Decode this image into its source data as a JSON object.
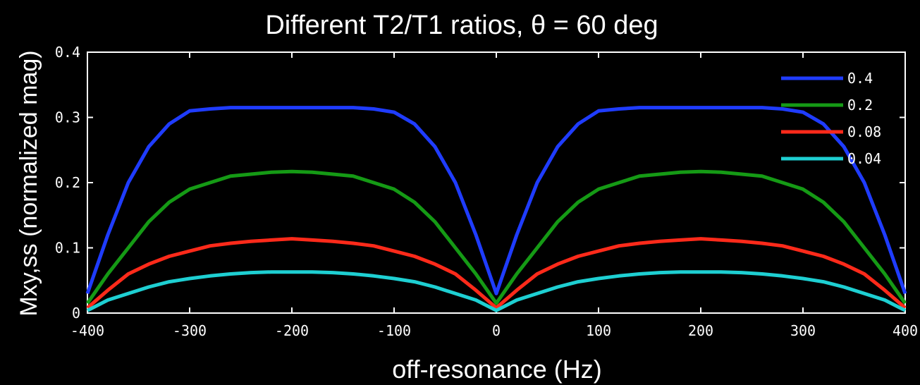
{
  "chart_data": {
    "type": "line",
    "title": "Different T2/T1 ratios, θ = 60 deg",
    "xlabel": "off-resonance (Hz)",
    "ylabel": "Mxy,ss (normalized mag)",
    "xlim": [
      -400,
      400
    ],
    "ylim": [
      0,
      0.4
    ],
    "xticks": [
      -400,
      -300,
      -200,
      -100,
      0,
      100,
      200,
      300,
      400
    ],
    "xtick_labels": [
      "-400",
      "-300",
      "-200",
      "-100",
      "0",
      "100",
      "200",
      "300",
      "400"
    ],
    "yticks": [
      0,
      0.1,
      0.2,
      0.3,
      0.4
    ],
    "ytick_labels": [
      "0",
      "0.1",
      "0.2",
      "0.3",
      "0.4"
    ],
    "grid": false,
    "legend_position": "top-right",
    "x": [
      -400,
      -380,
      -360,
      -340,
      -320,
      -300,
      -280,
      -260,
      -240,
      -220,
      -200,
      -180,
      -160,
      -140,
      -120,
      -100,
      -80,
      -60,
      -40,
      -20,
      0,
      20,
      40,
      60,
      80,
      100,
      120,
      140,
      160,
      180,
      200,
      220,
      240,
      260,
      280,
      300,
      320,
      340,
      360,
      380,
      400
    ],
    "series": [
      {
        "name": "0.4",
        "color": "#1f3cff",
        "values": [
          0.03,
          0.12,
          0.2,
          0.255,
          0.29,
          0.31,
          0.313,
          0.315,
          0.315,
          0.315,
          0.315,
          0.315,
          0.315,
          0.315,
          0.313,
          0.308,
          0.29,
          0.255,
          0.2,
          0.12,
          0.03,
          0.12,
          0.2,
          0.255,
          0.29,
          0.31,
          0.313,
          0.315,
          0.315,
          0.315,
          0.315,
          0.315,
          0.315,
          0.315,
          0.313,
          0.308,
          0.29,
          0.255,
          0.2,
          0.12,
          0.03
        ]
      },
      {
        "name": "0.2",
        "color": "#159a15",
        "values": [
          0.015,
          0.06,
          0.1,
          0.14,
          0.17,
          0.19,
          0.2,
          0.21,
          0.213,
          0.216,
          0.217,
          0.216,
          0.213,
          0.21,
          0.2,
          0.19,
          0.17,
          0.14,
          0.1,
          0.06,
          0.015,
          0.06,
          0.1,
          0.14,
          0.17,
          0.19,
          0.2,
          0.21,
          0.213,
          0.216,
          0.217,
          0.216,
          0.213,
          0.21,
          0.2,
          0.19,
          0.17,
          0.14,
          0.1,
          0.06,
          0.015
        ]
      },
      {
        "name": "0.08",
        "color": "#ff2a1a",
        "values": [
          0.008,
          0.035,
          0.06,
          0.075,
          0.087,
          0.095,
          0.103,
          0.107,
          0.11,
          0.112,
          0.114,
          0.112,
          0.11,
          0.107,
          0.103,
          0.095,
          0.087,
          0.075,
          0.06,
          0.035,
          0.008,
          0.035,
          0.06,
          0.075,
          0.087,
          0.095,
          0.103,
          0.107,
          0.11,
          0.112,
          0.114,
          0.112,
          0.11,
          0.107,
          0.103,
          0.095,
          0.087,
          0.075,
          0.06,
          0.035,
          0.008
        ]
      },
      {
        "name": "0.04",
        "color": "#1ecfd2",
        "values": [
          0.004,
          0.02,
          0.03,
          0.04,
          0.048,
          0.053,
          0.057,
          0.06,
          0.062,
          0.063,
          0.063,
          0.063,
          0.062,
          0.06,
          0.057,
          0.053,
          0.048,
          0.04,
          0.03,
          0.02,
          0.004,
          0.02,
          0.03,
          0.04,
          0.048,
          0.053,
          0.057,
          0.06,
          0.062,
          0.063,
          0.063,
          0.063,
          0.062,
          0.06,
          0.057,
          0.053,
          0.048,
          0.04,
          0.03,
          0.02,
          0.004
        ]
      }
    ]
  }
}
